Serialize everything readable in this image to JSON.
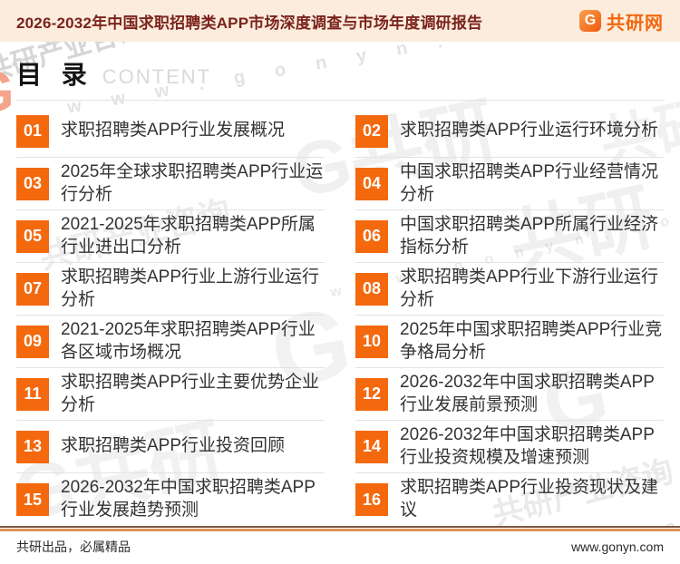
{
  "header": {
    "title": "2026-2032年中国求职招聘类APP市场深度调查与市场年度调研报告",
    "logo": {
      "icon_letter": "G",
      "brand": "共研网"
    }
  },
  "toc": {
    "title_cn": "目 录",
    "title_en": "CONTENT",
    "items": [
      {
        "num": "01",
        "text": "求职招聘类APP行业发展概况"
      },
      {
        "num": "02",
        "text": "求职招聘类APP行业运行环境分析"
      },
      {
        "num": "03",
        "text": "2025年全球求职招聘类APP行业运行分析"
      },
      {
        "num": "04",
        "text": "中国求职招聘类APP行业经营情况分析"
      },
      {
        "num": "05",
        "text": "2021-2025年求职招聘类APP所属行业进出口分析"
      },
      {
        "num": "06",
        "text": "中国求职招聘类APP所属行业经济指标分析"
      },
      {
        "num": "07",
        "text": "求职招聘类APP行业上游行业运行分析"
      },
      {
        "num": "08",
        "text": "求职招聘类APP行业下游行业运行分析"
      },
      {
        "num": "09",
        "text": "2021-2025年求职招聘类APP行业各区域市场概况"
      },
      {
        "num": "10",
        "text": "2025年中国求职招聘类APP行业竞争格局分析"
      },
      {
        "num": "11",
        "text": "求职招聘类APP行业主要优势企业分析"
      },
      {
        "num": "12",
        "text": "2026-2032年中国求职招聘类APP行业发展前景预测"
      },
      {
        "num": "13",
        "text": "求职招聘类APP行业投资回顾"
      },
      {
        "num": "14",
        "text": "2026-2032年中国求职招聘类APP行业投资规模及增速预测"
      },
      {
        "num": "15",
        "text": "2026-2032年中国求职招聘类APP行业发展趋势预测"
      },
      {
        "num": "16",
        "text": "求职招聘类APP行业投资现状及建议"
      }
    ]
  },
  "footer": {
    "left": "共研出品，必属精品",
    "right": "www.gonyn.com"
  },
  "watermarks": {
    "brand": "共研产业咨询",
    "url_spaced": "w w w . g o n y n . c o m",
    "g": "G",
    "g_brand": "G共研",
    "brand_short": "共研"
  },
  "colors": {
    "accent_orange": "#f4690e",
    "header_bg": "#fcecdd",
    "title_red": "#7a231c",
    "footer_rule_dark": "#7c5640",
    "footer_rule_orange": "#dd9257"
  }
}
